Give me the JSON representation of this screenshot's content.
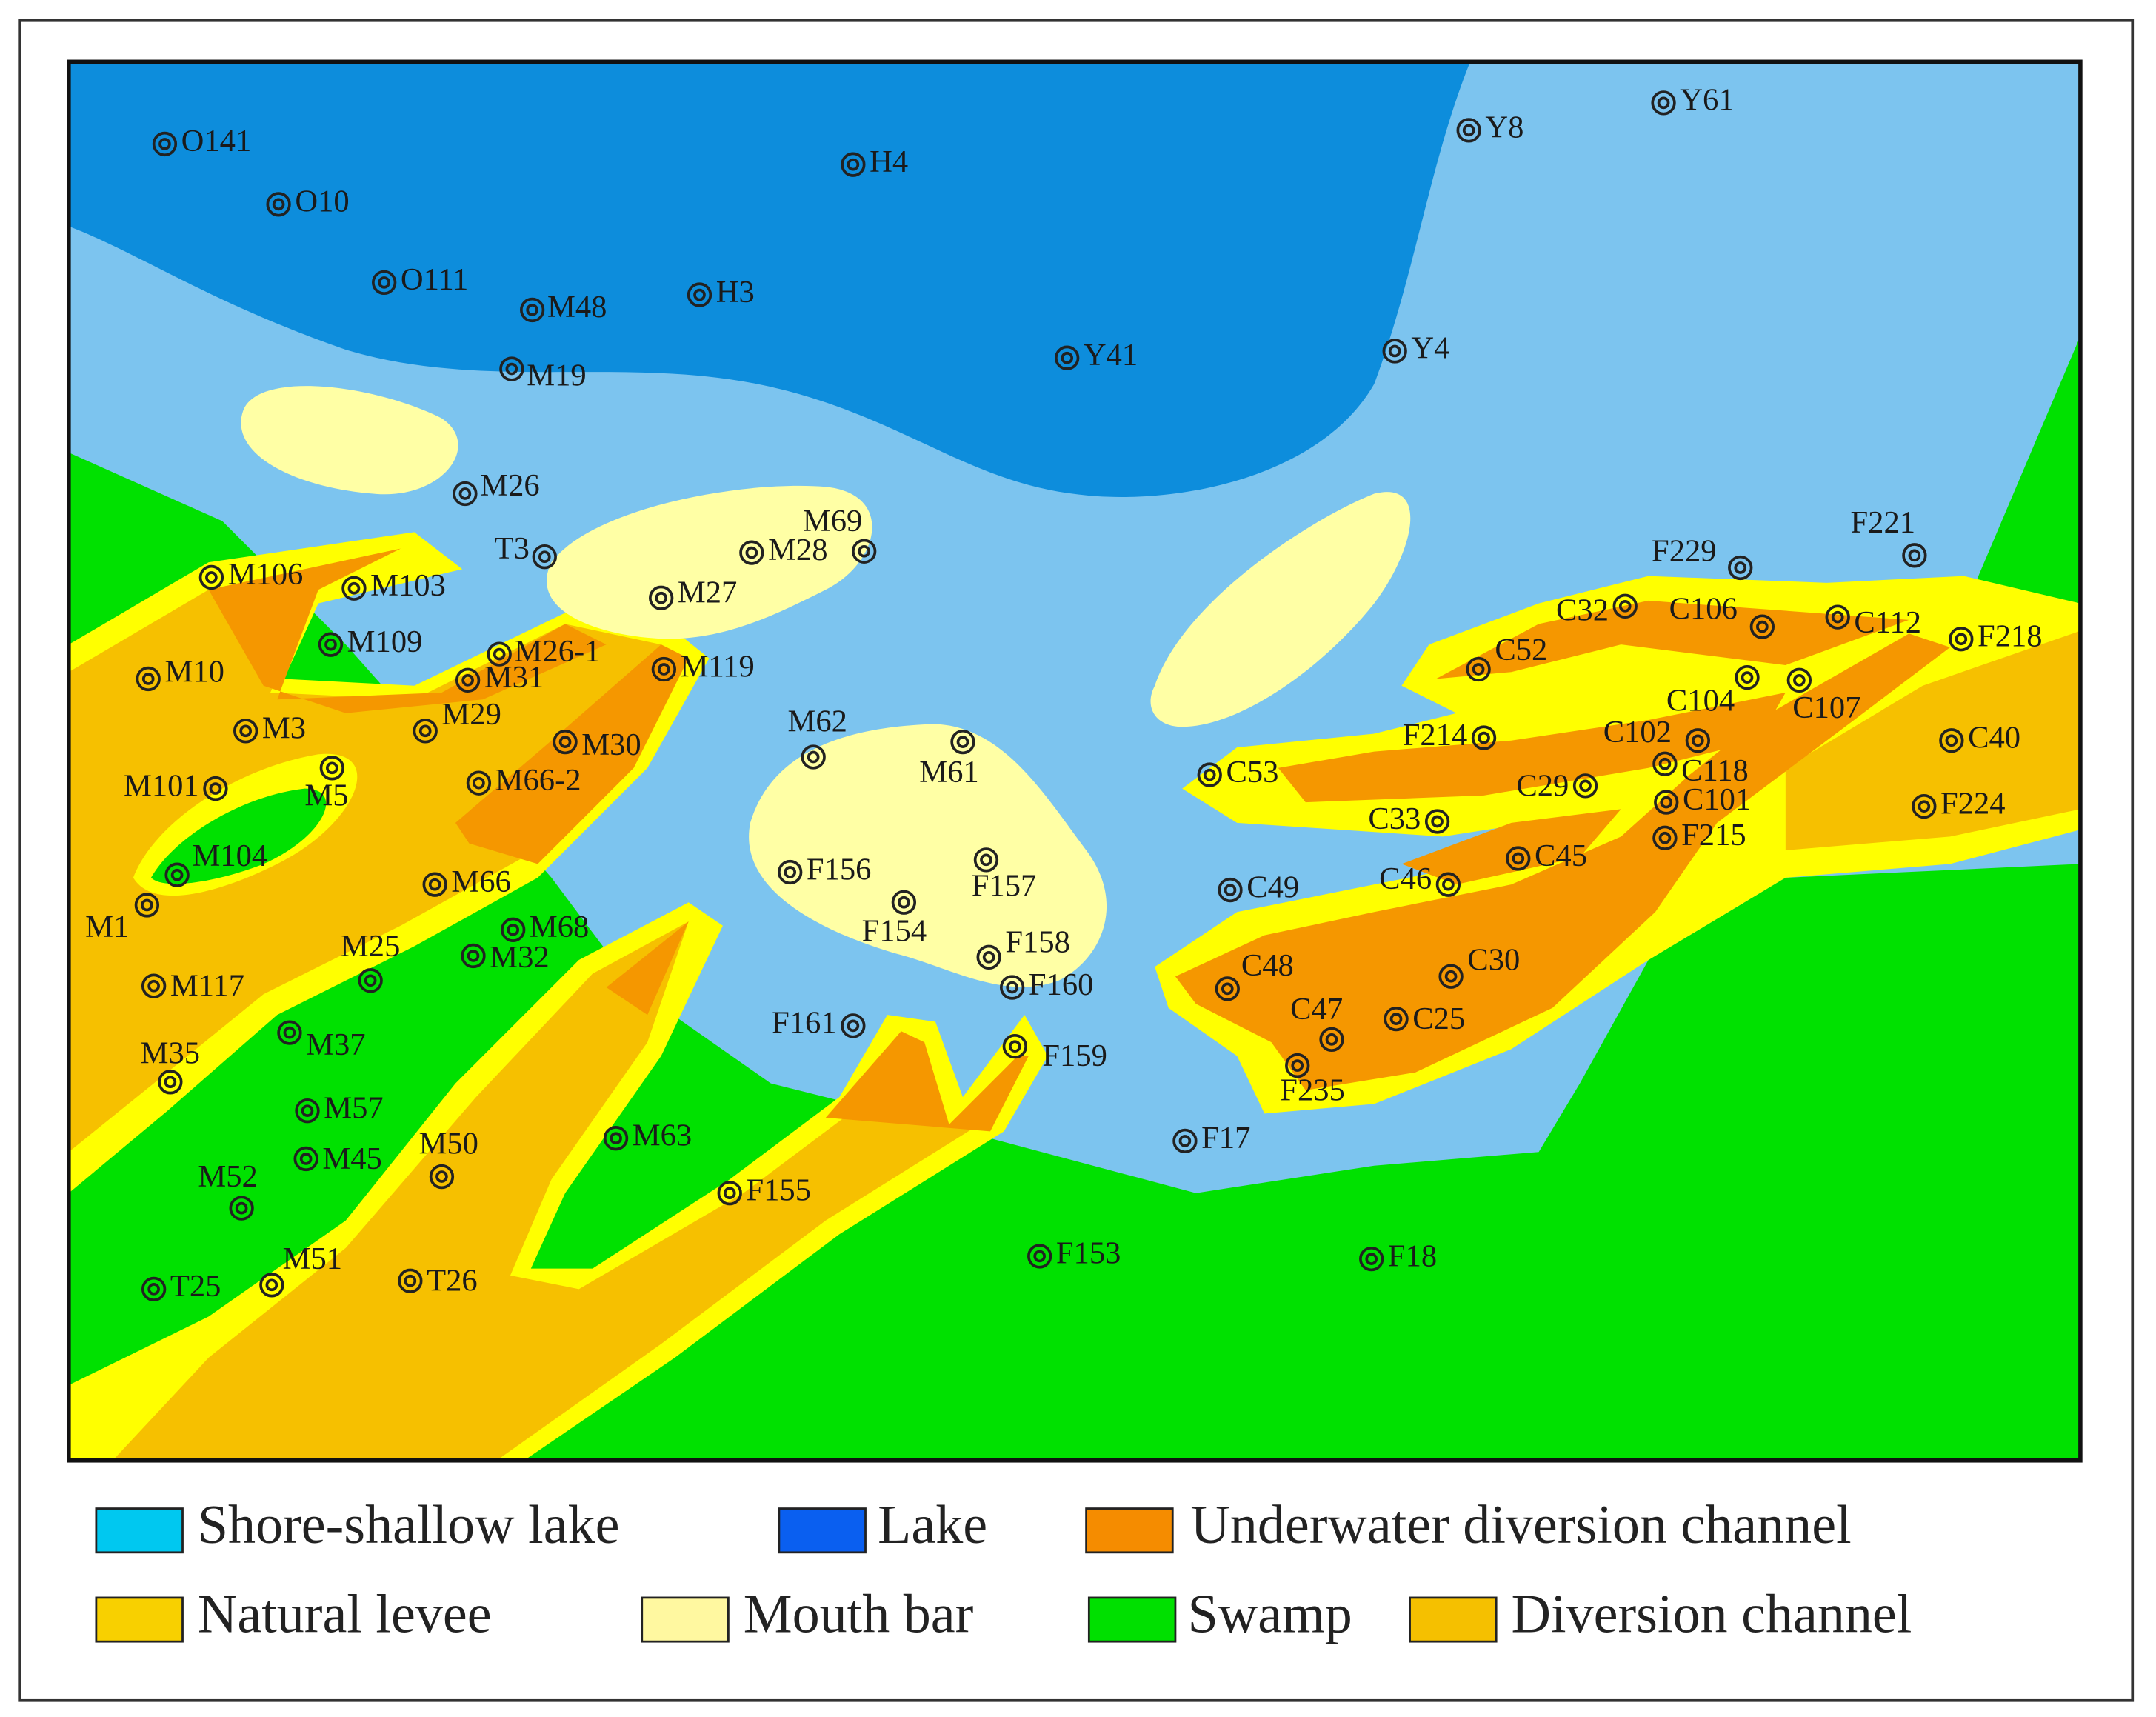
{
  "wells": [
    "O141",
    "O10",
    "O111",
    "M48",
    "H3",
    "H4",
    "Y41",
    "Y4",
    "Y8",
    "Y61",
    "M19",
    "M26",
    "T3",
    "M69",
    "M28",
    "M27",
    "M106",
    "M103",
    "M109",
    "M26-1",
    "M31",
    "M119",
    "M10",
    "M3",
    "M29",
    "M30",
    "M5",
    "M66-2",
    "M101",
    "M104",
    "M1",
    "M66",
    "M68",
    "M32",
    "M25",
    "M117",
    "M37",
    "M35",
    "M57",
    "M45",
    "M50",
    "M52",
    "M63",
    "F155",
    "M51",
    "T25",
    "T26",
    "M62",
    "M61",
    "F156",
    "F157",
    "F154",
    "F158",
    "F160",
    "F161",
    "F159",
    "F17",
    "F153",
    "F18",
    "C53",
    "F214",
    "C33",
    "C49",
    "C46",
    "C45",
    "C29",
    "C48",
    "C30",
    "C47",
    "C25",
    "F235",
    "C52",
    "C32",
    "C106",
    "C112",
    "F229",
    "F221",
    "F218",
    "C104",
    "C107",
    "C102",
    "C118",
    "C101",
    "F215",
    "C40",
    "F224"
  ],
  "legend": [
    "Shore-shallow lake",
    "Lake",
    "Underwater diversion channel",
    "Natural levee",
    "Mouth bar",
    "Swamp",
    "Diversion channel"
  ]
}
